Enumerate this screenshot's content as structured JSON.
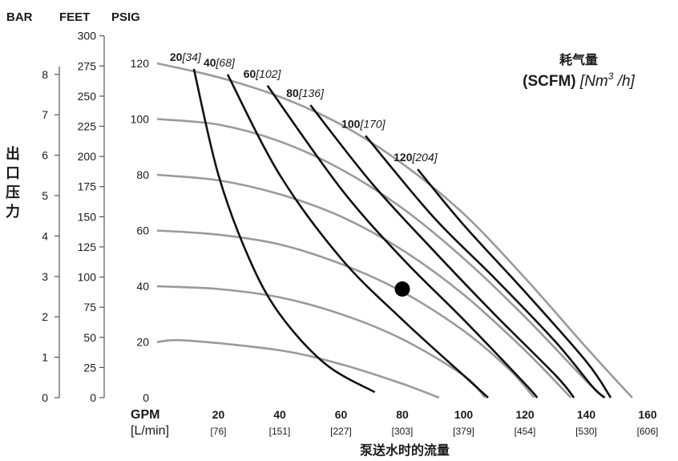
{
  "chart_data": {
    "type": "line",
    "header_units": [
      "BAR",
      "FEET",
      "PSIG"
    ],
    "ylabel": "出口压力",
    "xlabel": "泵送水时的流量",
    "x_unit_primary": "GPM",
    "x_unit_secondary": "[L/min]",
    "xlim": [
      0,
      165
    ],
    "ylim": [
      0,
      125
    ],
    "x_ticks": [
      {
        "gpm": "20",
        "lpm": "[76]",
        "value": 20
      },
      {
        "gpm": "40",
        "lpm": "[151]",
        "value": 40
      },
      {
        "gpm": "60",
        "lpm": "[227]",
        "value": 60
      },
      {
        "gpm": "80",
        "lpm": "[303]",
        "value": 80
      },
      {
        "gpm": "100",
        "lpm": "[379]",
        "value": 100
      },
      {
        "gpm": "120",
        "lpm": "[454]",
        "value": 120
      },
      {
        "gpm": "140",
        "lpm": "[530]",
        "value": 140
      },
      {
        "gpm": "160",
        "lpm": "[606]",
        "value": 160
      }
    ],
    "psig_ticks": [
      {
        "label": "0",
        "value": 0
      },
      {
        "label": "20",
        "value": 20
      },
      {
        "label": "40",
        "value": 40
      },
      {
        "label": "60",
        "value": 60
      },
      {
        "label": "80",
        "value": 80
      },
      {
        "label": "100",
        "value": 100
      },
      {
        "label": "120",
        "value": 120
      }
    ],
    "feet_ticks": [
      {
        "label": "0",
        "value": 0
      },
      {
        "label": "25",
        "value": 25
      },
      {
        "label": "50",
        "value": 50
      },
      {
        "label": "75",
        "value": 75
      },
      {
        "label": "100",
        "value": 100
      },
      {
        "label": "125",
        "value": 125
      },
      {
        "label": "150",
        "value": 150
      },
      {
        "label": "175",
        "value": 175
      },
      {
        "label": "200",
        "value": 200
      },
      {
        "label": "225",
        "value": 225
      },
      {
        "label": "250",
        "value": 250
      },
      {
        "label": "275",
        "value": 275
      },
      {
        "label": "300",
        "value": 300
      }
    ],
    "bar_ticks": [
      {
        "label": "0",
        "value": 0
      },
      {
        "label": "1",
        "value": 1
      },
      {
        "label": "2",
        "value": 2
      },
      {
        "label": "3",
        "value": 3
      },
      {
        "label": "4",
        "value": 4
      },
      {
        "label": "5",
        "value": 5
      },
      {
        "label": "6",
        "value": 6
      },
      {
        "label": "7",
        "value": 7
      },
      {
        "label": "8",
        "value": 8
      }
    ],
    "legend": {
      "title": "耗气量",
      "unit_bold": "(SCFM)",
      "unit_italic_a": "[Nm",
      "unit_sup": "3",
      "unit_italic_b": " /h]",
      "position": "top-right"
    },
    "pressure_curves": [
      {
        "inlet_psig": 20,
        "points": [
          [
            0,
            20
          ],
          [
            10,
            20.5
          ],
          [
            40,
            17
          ],
          [
            60,
            12
          ],
          [
            80,
            5
          ],
          [
            92,
            0
          ]
        ]
      },
      {
        "inlet_psig": 40,
        "points": [
          [
            0,
            40
          ],
          [
            20,
            39
          ],
          [
            40,
            36
          ],
          [
            60,
            30
          ],
          [
            80,
            21
          ],
          [
            100,
            8
          ],
          [
            107,
            0
          ]
        ]
      },
      {
        "inlet_psig": 60,
        "points": [
          [
            0,
            60
          ],
          [
            20,
            58.5
          ],
          [
            40,
            55
          ],
          [
            60,
            48
          ],
          [
            80,
            38
          ],
          [
            100,
            24
          ],
          [
            115,
            10
          ],
          [
            123,
            0
          ]
        ]
      },
      {
        "inlet_psig": 80,
        "points": [
          [
            0,
            80
          ],
          [
            20,
            78
          ],
          [
            40,
            73
          ],
          [
            60,
            65
          ],
          [
            80,
            53
          ],
          [
            100,
            37
          ],
          [
            120,
            17
          ],
          [
            135,
            0
          ]
        ]
      },
      {
        "inlet_psig": 100,
        "points": [
          [
            0,
            100
          ],
          [
            20,
            98
          ],
          [
            40,
            92
          ],
          [
            60,
            82
          ],
          [
            80,
            68
          ],
          [
            100,
            50
          ],
          [
            120,
            29
          ],
          [
            140,
            6
          ],
          [
            146,
            0
          ]
        ]
      },
      {
        "inlet_psig": 120,
        "points": [
          [
            0,
            120
          ],
          [
            20,
            115
          ],
          [
            40,
            108
          ],
          [
            60,
            98
          ],
          [
            80,
            84
          ],
          [
            100,
            66
          ],
          [
            120,
            43
          ],
          [
            140,
            18
          ],
          [
            155,
            0
          ]
        ]
      }
    ],
    "air_curves": [
      {
        "label_bold": "20",
        "label_italic": "[34]",
        "points": [
          [
            12,
            118
          ],
          [
            20,
            80
          ],
          [
            30,
            50
          ],
          [
            40,
            30
          ],
          [
            55,
            12
          ],
          [
            71,
            2
          ]
        ]
      },
      {
        "label_bold": "40",
        "label_italic": "[68]",
        "points": [
          [
            23,
            116
          ],
          [
            40,
            80
          ],
          [
            60,
            50
          ],
          [
            80,
            28
          ],
          [
            100,
            8
          ],
          [
            108,
            0
          ]
        ]
      },
      {
        "label_bold": "60",
        "label_italic": "[102]",
        "points": [
          [
            36,
            112
          ],
          [
            60,
            75
          ],
          [
            80,
            50
          ],
          [
            100,
            28
          ],
          [
            120,
            5
          ],
          [
            124,
            0
          ]
        ]
      },
      {
        "label_bold": "80",
        "label_italic": "[136]",
        "points": [
          [
            50,
            105
          ],
          [
            70,
            77
          ],
          [
            90,
            53
          ],
          [
            110,
            30
          ],
          [
            130,
            8
          ],
          [
            136,
            0
          ]
        ]
      },
      {
        "label_bold": "100",
        "label_italic": "[170]",
        "points": [
          [
            68,
            94
          ],
          [
            90,
            65
          ],
          [
            110,
            43
          ],
          [
            130,
            20
          ],
          [
            142,
            4
          ],
          [
            146,
            0
          ]
        ]
      },
      {
        "label_bold": "120",
        "label_italic": "[204]",
        "points": [
          [
            85,
            82
          ],
          [
            100,
            62
          ],
          [
            120,
            38
          ],
          [
            140,
            13
          ],
          [
            148,
            0
          ]
        ]
      }
    ],
    "operating_point": {
      "x": 80,
      "y": 39
    }
  }
}
